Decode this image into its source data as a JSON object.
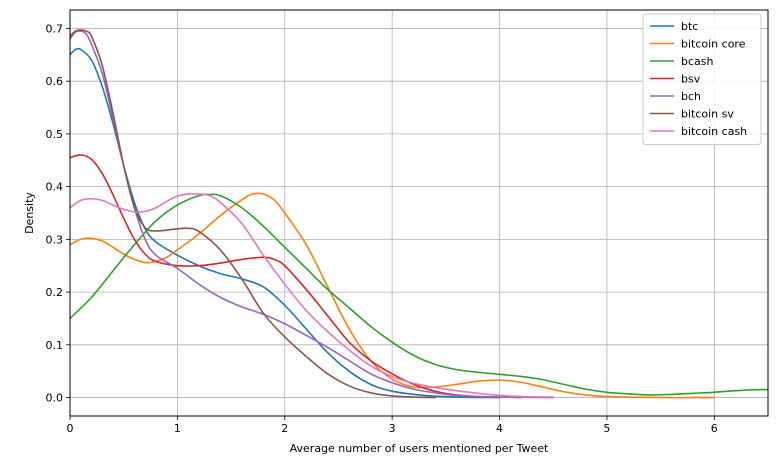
{
  "chart_data": {
    "type": "line",
    "title": "",
    "xlabel": "Average number of users mentioned per Tweet",
    "ylabel": "Density",
    "xlim": [
      0,
      6.5
    ],
    "ylim": [
      -0.035,
      0.735
    ],
    "x_ticks": [
      0,
      1,
      2,
      3,
      4,
      5,
      6
    ],
    "y_ticks": [
      0.0,
      0.1,
      0.2,
      0.3,
      0.4,
      0.5,
      0.6,
      0.7
    ],
    "x_tick_labels": [
      "0",
      "1",
      "2",
      "3",
      "4",
      "5",
      "6"
    ],
    "y_tick_labels": [
      "0.0",
      "0.1",
      "0.2",
      "0.3",
      "0.4",
      "0.5",
      "0.6",
      "0.7"
    ],
    "grid": true,
    "legend_position": "top-right",
    "series": [
      {
        "name": "btc",
        "color": "#1f77b4",
        "points": [
          [
            0,
            0.65
          ],
          [
            0.05,
            0.66
          ],
          [
            0.1,
            0.66
          ],
          [
            0.2,
            0.64
          ],
          [
            0.3,
            0.59
          ],
          [
            0.4,
            0.52
          ],
          [
            0.5,
            0.44
          ],
          [
            0.6,
            0.37
          ],
          [
            0.7,
            0.32
          ],
          [
            0.8,
            0.295
          ],
          [
            1.0,
            0.27
          ],
          [
            1.2,
            0.25
          ],
          [
            1.4,
            0.235
          ],
          [
            1.6,
            0.225
          ],
          [
            1.8,
            0.21
          ],
          [
            2.0,
            0.175
          ],
          [
            2.2,
            0.13
          ],
          [
            2.4,
            0.085
          ],
          [
            2.6,
            0.05
          ],
          [
            2.8,
            0.025
          ],
          [
            3.0,
            0.012
          ],
          [
            3.3,
            0.004
          ],
          [
            3.6,
            0.001
          ],
          [
            4.0,
            0
          ]
        ]
      },
      {
        "name": "bitcoin core",
        "color": "#ff7f0e",
        "points": [
          [
            0,
            0.29
          ],
          [
            0.1,
            0.3
          ],
          [
            0.2,
            0.302
          ],
          [
            0.3,
            0.297
          ],
          [
            0.4,
            0.285
          ],
          [
            0.5,
            0.272
          ],
          [
            0.6,
            0.262
          ],
          [
            0.7,
            0.256
          ],
          [
            0.8,
            0.258
          ],
          [
            0.9,
            0.266
          ],
          [
            1.0,
            0.28
          ],
          [
            1.2,
            0.31
          ],
          [
            1.4,
            0.345
          ],
          [
            1.6,
            0.375
          ],
          [
            1.7,
            0.386
          ],
          [
            1.8,
            0.386
          ],
          [
            1.9,
            0.375
          ],
          [
            2.0,
            0.35
          ],
          [
            2.2,
            0.29
          ],
          [
            2.4,
            0.21
          ],
          [
            2.6,
            0.13
          ],
          [
            2.8,
            0.07
          ],
          [
            3.0,
            0.035
          ],
          [
            3.2,
            0.02
          ],
          [
            3.4,
            0.02
          ],
          [
            3.6,
            0.025
          ],
          [
            3.8,
            0.031
          ],
          [
            4.0,
            0.033
          ],
          [
            4.2,
            0.029
          ],
          [
            4.4,
            0.02
          ],
          [
            4.6,
            0.011
          ],
          [
            4.8,
            0.005
          ],
          [
            5.0,
            0.002
          ],
          [
            5.5,
            0
          ],
          [
            6.0,
            0
          ]
        ]
      },
      {
        "name": "bcash",
        "color": "#2ca02c",
        "points": [
          [
            0,
            0.15
          ],
          [
            0.2,
            0.19
          ],
          [
            0.4,
            0.24
          ],
          [
            0.6,
            0.29
          ],
          [
            0.8,
            0.335
          ],
          [
            1.0,
            0.365
          ],
          [
            1.2,
            0.383
          ],
          [
            1.3,
            0.385
          ],
          [
            1.4,
            0.383
          ],
          [
            1.6,
            0.36
          ],
          [
            1.8,
            0.325
          ],
          [
            2.0,
            0.285
          ],
          [
            2.2,
            0.245
          ],
          [
            2.4,
            0.205
          ],
          [
            2.6,
            0.17
          ],
          [
            2.8,
            0.135
          ],
          [
            3.0,
            0.105
          ],
          [
            3.2,
            0.08
          ],
          [
            3.4,
            0.063
          ],
          [
            3.6,
            0.053
          ],
          [
            3.8,
            0.048
          ],
          [
            4.0,
            0.044
          ],
          [
            4.2,
            0.04
          ],
          [
            4.4,
            0.034
          ],
          [
            4.6,
            0.025
          ],
          [
            4.8,
            0.016
          ],
          [
            5.0,
            0.01
          ],
          [
            5.2,
            0.007
          ],
          [
            5.4,
            0.005
          ],
          [
            5.6,
            0.006
          ],
          [
            5.8,
            0.008
          ],
          [
            6.0,
            0.01
          ],
          [
            6.2,
            0.013
          ],
          [
            6.4,
            0.015
          ],
          [
            6.5,
            0.015
          ]
        ]
      },
      {
        "name": "bsv",
        "color": "#d62728",
        "points": [
          [
            0,
            0.455
          ],
          [
            0.1,
            0.46
          ],
          [
            0.2,
            0.452
          ],
          [
            0.3,
            0.425
          ],
          [
            0.4,
            0.385
          ],
          [
            0.5,
            0.34
          ],
          [
            0.6,
            0.3
          ],
          [
            0.7,
            0.272
          ],
          [
            0.8,
            0.258
          ],
          [
            1.0,
            0.25
          ],
          [
            1.2,
            0.25
          ],
          [
            1.4,
            0.255
          ],
          [
            1.6,
            0.262
          ],
          [
            1.8,
            0.266
          ],
          [
            1.9,
            0.262
          ],
          [
            2.0,
            0.25
          ],
          [
            2.2,
            0.205
          ],
          [
            2.4,
            0.155
          ],
          [
            2.6,
            0.105
          ],
          [
            2.8,
            0.07
          ],
          [
            3.0,
            0.045
          ],
          [
            3.2,
            0.025
          ],
          [
            3.4,
            0.012
          ],
          [
            3.6,
            0.005
          ],
          [
            3.8,
            0.002
          ],
          [
            4.0,
            0.001
          ],
          [
            4.2,
            0
          ]
        ]
      },
      {
        "name": "bch",
        "color": "#9467bd",
        "points": [
          [
            0,
            0.68
          ],
          [
            0.05,
            0.693
          ],
          [
            0.1,
            0.695
          ],
          [
            0.15,
            0.69
          ],
          [
            0.2,
            0.67
          ],
          [
            0.3,
            0.615
          ],
          [
            0.4,
            0.53
          ],
          [
            0.5,
            0.44
          ],
          [
            0.6,
            0.36
          ],
          [
            0.7,
            0.3
          ],
          [
            0.8,
            0.27
          ],
          [
            1.0,
            0.245
          ],
          [
            1.2,
            0.215
          ],
          [
            1.4,
            0.19
          ],
          [
            1.6,
            0.172
          ],
          [
            1.8,
            0.158
          ],
          [
            2.0,
            0.14
          ],
          [
            2.2,
            0.118
          ],
          [
            2.4,
            0.095
          ],
          [
            2.6,
            0.07
          ],
          [
            2.8,
            0.045
          ],
          [
            3.0,
            0.028
          ],
          [
            3.2,
            0.016
          ],
          [
            3.4,
            0.009
          ],
          [
            3.6,
            0.004
          ],
          [
            3.8,
            0.002
          ],
          [
            4.0,
            0.001
          ],
          [
            4.5,
            0
          ]
        ]
      },
      {
        "name": "bitcoin sv",
        "color": "#8c564b",
        "points": [
          [
            0,
            0.685
          ],
          [
            0.05,
            0.695
          ],
          [
            0.1,
            0.697
          ],
          [
            0.15,
            0.695
          ],
          [
            0.2,
            0.685
          ],
          [
            0.3,
            0.63
          ],
          [
            0.4,
            0.54
          ],
          [
            0.5,
            0.44
          ],
          [
            0.6,
            0.36
          ],
          [
            0.7,
            0.322
          ],
          [
            0.8,
            0.316
          ],
          [
            1.0,
            0.32
          ],
          [
            1.1,
            0.321
          ],
          [
            1.2,
            0.315
          ],
          [
            1.4,
            0.28
          ],
          [
            1.6,
            0.225
          ],
          [
            1.8,
            0.16
          ],
          [
            2.0,
            0.115
          ],
          [
            2.2,
            0.078
          ],
          [
            2.4,
            0.045
          ],
          [
            2.6,
            0.022
          ],
          [
            2.8,
            0.009
          ],
          [
            3.0,
            0.003
          ],
          [
            3.2,
            0.001
          ],
          [
            3.4,
            0
          ]
        ]
      },
      {
        "name": "bitcoin cash",
        "color": "#e377c2",
        "points": [
          [
            0,
            0.36
          ],
          [
            0.1,
            0.374
          ],
          [
            0.2,
            0.377
          ],
          [
            0.3,
            0.374
          ],
          [
            0.4,
            0.365
          ],
          [
            0.5,
            0.357
          ],
          [
            0.6,
            0.352
          ],
          [
            0.7,
            0.353
          ],
          [
            0.8,
            0.36
          ],
          [
            0.9,
            0.372
          ],
          [
            1.0,
            0.382
          ],
          [
            1.1,
            0.386
          ],
          [
            1.2,
            0.386
          ],
          [
            1.3,
            0.383
          ],
          [
            1.4,
            0.37
          ],
          [
            1.6,
            0.33
          ],
          [
            1.8,
            0.27
          ],
          [
            2.0,
            0.215
          ],
          [
            2.2,
            0.165
          ],
          [
            2.4,
            0.125
          ],
          [
            2.6,
            0.09
          ],
          [
            2.8,
            0.06
          ],
          [
            3.0,
            0.04
          ],
          [
            3.2,
            0.027
          ],
          [
            3.4,
            0.019
          ],
          [
            3.6,
            0.013
          ],
          [
            3.8,
            0.008
          ],
          [
            4.0,
            0.004
          ],
          [
            4.2,
            0.002
          ],
          [
            4.5,
            0.001
          ]
        ]
      }
    ]
  }
}
